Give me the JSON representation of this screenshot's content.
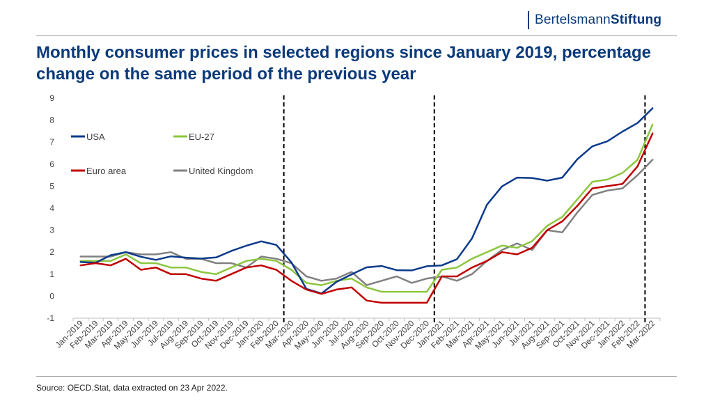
{
  "brand": {
    "light": "Bertelsmann",
    "bold": "Stiftung"
  },
  "source": "Source: OECD.Stat, data extracted on 23 Apr 2022.",
  "chart_data": {
    "type": "line",
    "title": "Monthly consumer prices in selected regions since January 2019, percentage change on the same period of the previous year",
    "xlabel": "",
    "ylabel": "",
    "ylim": [
      -1,
      9
    ],
    "yticks": [
      "-1",
      "0",
      "1",
      "2",
      "3",
      "4",
      "5",
      "6",
      "7",
      "8",
      "9"
    ],
    "grid": false,
    "categories": [
      "Jan-2019",
      "Feb-2019",
      "Mar-2019",
      "Apr-2019",
      "May-2019",
      "Jun-2019",
      "Jul-2019",
      "Aug-2019",
      "Sep-2019",
      "Oct-2019",
      "Nov-2019",
      "Dec-2019",
      "Jan-2020",
      "Feb-2020",
      "Mar-2020",
      "Apr-2020",
      "May-2020",
      "Jun-2020",
      "Jul-2020",
      "Aug-2020",
      "Sep-2020",
      "Oct-2020",
      "Nov-2020",
      "Dec-2020",
      "Jan-2021",
      "Feb-2021",
      "Mar-2021",
      "Apr-2021",
      "May-2021",
      "Jun-2021",
      "Jul-2021",
      "Aug-2021",
      "Sep-2021",
      "Oct-2021",
      "Nov-2021",
      "Dec-2021",
      "Jan-2022",
      "Feb-2022",
      "Mar-2022"
    ],
    "vlines": [
      "Feb-2020",
      "Dec-2020",
      "Feb-2022"
    ],
    "series": [
      {
        "name": "USA",
        "color": "#0b3a8a",
        "values": [
          1.55,
          1.52,
          1.86,
          2.0,
          1.79,
          1.65,
          1.81,
          1.75,
          1.71,
          1.76,
          2.05,
          2.29,
          2.49,
          2.33,
          1.54,
          0.33,
          0.12,
          0.65,
          0.99,
          1.31,
          1.37,
          1.18,
          1.17,
          1.36,
          1.4,
          1.68,
          2.62,
          4.16,
          4.99,
          5.39,
          5.37,
          5.25,
          5.39,
          6.22,
          6.81,
          7.04,
          7.48,
          7.87,
          8.54
        ]
      },
      {
        "name": "EU-27",
        "color": "#8cc63f",
        "values": [
          1.6,
          1.6,
          1.6,
          1.9,
          1.5,
          1.5,
          1.3,
          1.3,
          1.1,
          1.0,
          1.3,
          1.6,
          1.7,
          1.6,
          1.2,
          0.6,
          0.5,
          0.7,
          0.8,
          0.4,
          0.2,
          0.2,
          0.2,
          0.2,
          1.2,
          1.3,
          1.7,
          2.0,
          2.3,
          2.2,
          2.5,
          3.2,
          3.6,
          4.4,
          5.2,
          5.3,
          5.6,
          6.2,
          7.8
        ]
      },
      {
        "name": "Euro area",
        "color": "#c00000",
        "values": [
          1.4,
          1.5,
          1.4,
          1.7,
          1.2,
          1.3,
          1.0,
          1.0,
          0.8,
          0.7,
          1.0,
          1.3,
          1.4,
          1.2,
          0.7,
          0.3,
          0.1,
          0.3,
          0.4,
          -0.2,
          -0.3,
          -0.3,
          -0.3,
          -0.3,
          0.9,
          0.9,
          1.3,
          1.6,
          2.0,
          1.9,
          2.2,
          3.0,
          3.4,
          4.1,
          4.9,
          5.0,
          5.1,
          5.9,
          7.4
        ]
      },
      {
        "name": "United Kingdom",
        "color": "#808080",
        "values": [
          1.8,
          1.8,
          1.8,
          2.0,
          1.9,
          1.9,
          2.0,
          1.7,
          1.7,
          1.5,
          1.5,
          1.3,
          1.8,
          1.7,
          1.5,
          0.9,
          0.7,
          0.8,
          1.1,
          0.5,
          0.7,
          0.9,
          0.6,
          0.8,
          0.9,
          0.7,
          1.0,
          1.6,
          2.1,
          2.4,
          2.1,
          3.0,
          2.9,
          3.8,
          4.6,
          4.8,
          4.9,
          5.5,
          6.2
        ]
      }
    ]
  }
}
